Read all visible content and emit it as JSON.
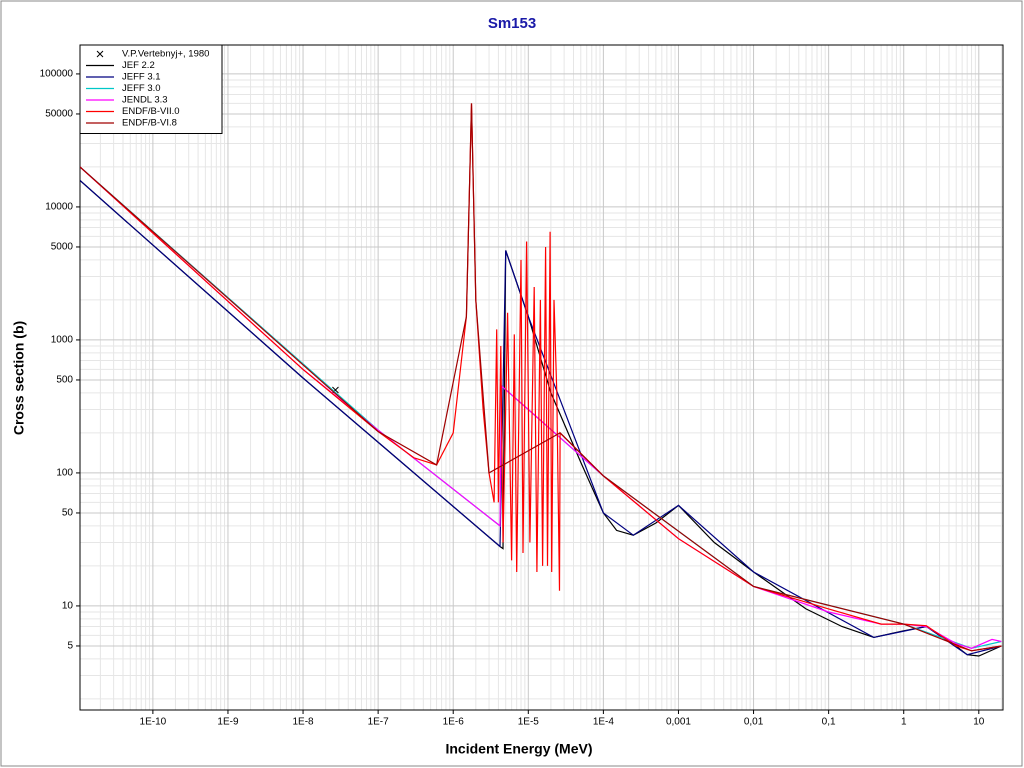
{
  "chart_data": {
    "type": "line",
    "title": "Sm153",
    "x_label": "Incident Energy (MeV)",
    "y_label": "Cross section (b)",
    "xscale": "log",
    "yscale": "log",
    "grid": true,
    "legend": "upper left",
    "xlim": [
      1.07e-11,
      21
    ],
    "ylim": [
      1.65,
      165000
    ],
    "xticks": [
      {
        "value": 1e-10,
        "label": "1E-10"
      },
      {
        "value": 1e-09,
        "label": "1E-9"
      },
      {
        "value": 1e-08,
        "label": "1E-8"
      },
      {
        "value": 1e-07,
        "label": "1E-7"
      },
      {
        "value": 1e-06,
        "label": "1E-6"
      },
      {
        "value": 1e-05,
        "label": "1E-5"
      },
      {
        "value": 0.0001,
        "label": "1E-4"
      },
      {
        "value": 0.001,
        "label": "0,001"
      },
      {
        "value": 0.01,
        "label": "0,01"
      },
      {
        "value": 0.1,
        "label": "0,1"
      },
      1,
      10
    ],
    "yticks": [
      5,
      10,
      50,
      100,
      500,
      1000,
      5000,
      10000,
      50000,
      100000
    ],
    "series": [
      {
        "name": "V.P.Vertebnyj+, 1980",
        "color": "#000000",
        "marker": "x",
        "x": [
          2.7e-08
        ],
        "values": [
          420
        ]
      },
      {
        "name": "JEF 2.2",
        "color": "#000000",
        "x": [
          1.07e-11,
          1e-08,
          4.2e-06,
          4.6e-06,
          5e-06,
          1e-05,
          2e-05,
          5e-05,
          0.0001,
          0.00015,
          0.00025,
          0.0005,
          0.001,
          0.003,
          0.01,
          0.05,
          0.15,
          0.4,
          1,
          2,
          4,
          7,
          10,
          20
        ],
        "values": [
          15800,
          517,
          28,
          27,
          4700,
          1500,
          400,
          120,
          50,
          37,
          34,
          42,
          57,
          30,
          18,
          9.5,
          7,
          5.8,
          6.5,
          7,
          5.5,
          4.3,
          4.2,
          5
        ]
      },
      {
        "name": "JEFF 3.1",
        "color": "#000080",
        "x": [
          1.07e-11,
          1e-08,
          4.2e-06,
          5e-06,
          1e-05,
          0.0001,
          0.00025,
          0.001,
          0.01,
          0.4,
          2,
          7,
          20
        ],
        "values": [
          15800,
          517,
          28,
          4700,
          1500,
          50,
          34,
          57,
          18,
          5.8,
          7,
          4.3,
          5
        ]
      },
      {
        "name": "JEFF 3.0",
        "color": "#00c8c8",
        "x": [
          1.07e-11,
          1e-07,
          4.2e-06,
          4.4e-06,
          0.0001,
          0.01,
          1,
          8,
          20
        ],
        "values": [
          20000,
          210,
          40,
          450,
          95,
          14,
          7.3,
          4.8,
          5.4
        ]
      },
      {
        "name": "JENDL 3.3",
        "color": "#ff00ff",
        "x": [
          1.07e-11,
          1e-08,
          1e-07,
          4.2e-06,
          4.4e-06,
          1e-05,
          0.0001,
          0.001,
          0.01,
          0.1,
          0.5,
          1,
          2,
          5,
          8,
          15,
          20
        ],
        "values": [
          20000,
          600,
          210,
          40,
          450,
          300,
          95,
          32,
          14,
          9,
          7.3,
          7.3,
          7,
          5.2,
          4.8,
          5.6,
          5.4
        ]
      },
      {
        "name": "ENDF/B-VII.0",
        "color": "#ff0000",
        "x": [
          1.07e-11,
          1e-08,
          1e-07,
          3e-07,
          6e-07,
          1e-06,
          1.5e-06,
          1.75e-06,
          2e-06,
          2.5e-06,
          3e-06,
          3.5e-06,
          3.8e-06,
          4e-06,
          4.3e-06,
          4.6e-06,
          5.3e-06,
          6e-06,
          6.5e-06,
          7e-06,
          8e-06,
          8.5e-06,
          9.5e-06,
          1.05e-05,
          1.2e-05,
          1.3e-05,
          1.45e-05,
          1.55e-05,
          1.7e-05,
          1.8e-05,
          1.95e-05,
          2.05e-05,
          2.2e-05,
          2.4e-05,
          2.6e-05,
          2.65e-05,
          0.0001,
          0.001,
          0.01,
          0.1,
          0.5,
          1,
          2,
          5,
          8,
          20
        ],
        "values": [
          20000,
          600,
          205,
          130,
          115,
          200,
          1500,
          60000,
          2000,
          300,
          100,
          60,
          1200,
          60,
          900,
          30,
          1600,
          22,
          1100,
          18,
          4000,
          25,
          5500,
          30,
          2500,
          18,
          2000,
          20,
          5000,
          20,
          6500,
          18,
          2000,
          400,
          13,
          200,
          95,
          32,
          14,
          9.5,
          7.3,
          7.3,
          7.1,
          5,
          4.6,
          5
        ]
      },
      {
        "name": "ENDF/B-VI.8",
        "color": "#a00000",
        "x": [
          1.07e-11,
          1e-07,
          6e-07,
          1.5e-06,
          1.75e-06,
          2e-06,
          3e-06,
          2.65e-05,
          0.0001,
          0.01,
          1,
          8,
          20
        ],
        "values": [
          20000,
          205,
          115,
          1500,
          60000,
          2000,
          100,
          200,
          95,
          14,
          7.3,
          4.6,
          5
        ]
      }
    ]
  }
}
